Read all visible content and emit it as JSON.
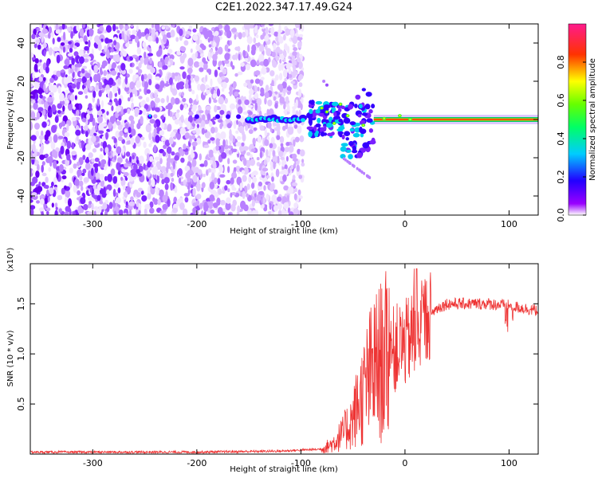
{
  "title": "C2E1.2022.347.17.49.G24",
  "chart_data": [
    {
      "type": "heatmap",
      "xlabel": "Height of straight line (km)",
      "ylabel": "Frequency (Hz)",
      "xlim": [
        -360,
        128
      ],
      "ylim": [
        -50,
        50
      ],
      "x_ticks": [
        -300,
        -200,
        -100,
        0,
        100
      ],
      "x_tick_labels": [
        "-300",
        "-200",
        "-100",
        "0",
        "100"
      ],
      "y_ticks": [
        -40,
        -20,
        0,
        20,
        40
      ],
      "y_tick_labels": [
        "-40",
        "-20",
        "0",
        "20",
        "40"
      ],
      "colorbar": {
        "label": "Normalized spectral amplitude",
        "range": [
          0,
          1
        ],
        "ticks": [
          0.0,
          0.2,
          0.4,
          0.6,
          0.8
        ],
        "tick_labels": [
          "0.0",
          "0.2",
          "0.4",
          "0.6",
          "0.8"
        ],
        "colors": [
          "#ffffff",
          "#8800ff",
          "#0000ff",
          "#00ffff",
          "#00ff00",
          "#ffff00",
          "#ff0000",
          "#ff1a8c"
        ]
      },
      "noise_region_x": [
        -360,
        -98
      ],
      "features": [
        {
          "x": [
            -150,
            -100
          ],
          "y": 0,
          "amplitude": 0.35
        },
        {
          "x": [
            -90,
            -60
          ],
          "y": [
            -8,
            10
          ],
          "amplitude": 0.45
        },
        {
          "x": [
            -60,
            -30
          ],
          "y": [
            -18,
            8
          ],
          "amplitude": 0.4
        },
        {
          "x": [
            -30,
            128
          ],
          "y": 0,
          "amplitude": 0.9
        }
      ]
    },
    {
      "type": "line",
      "xlabel": "Height of straight line (km)",
      "ylabel": "SNR (10 * v/v)",
      "multiplier_label": "(x10⁴)",
      "xlim": [
        -360,
        128
      ],
      "ylim": [
        0,
        1.9
      ],
      "x_ticks": [
        -300,
        -200,
        -100,
        0,
        100
      ],
      "x_tick_labels": [
        "-300",
        "-200",
        "-100",
        "0",
        "100"
      ],
      "y_ticks": [
        0.5,
        1.0,
        1.5
      ],
      "y_tick_labels": [
        "0.5",
        "1.0",
        "1.5"
      ],
      "color": "#ee3333",
      "series": [
        {
          "x": [
            -360,
            -300,
            -200,
            -120,
            -100,
            -80,
            -70,
            -60,
            -50,
            -45,
            -40,
            -35,
            -30,
            -25,
            -20,
            -15,
            -10,
            0,
            10,
            20,
            30,
            40,
            50,
            60,
            80,
            100,
            128
          ],
          "y": [
            0.02,
            0.02,
            0.02,
            0.03,
            0.04,
            0.05,
            0.1,
            0.2,
            0.35,
            0.5,
            0.6,
            0.75,
            0.85,
            0.9,
            0.95,
            1.0,
            1.05,
            1.1,
            1.2,
            1.35,
            1.45,
            1.5,
            1.5,
            1.5,
            1.5,
            1.48,
            1.43
          ]
        }
      ]
    }
  ]
}
